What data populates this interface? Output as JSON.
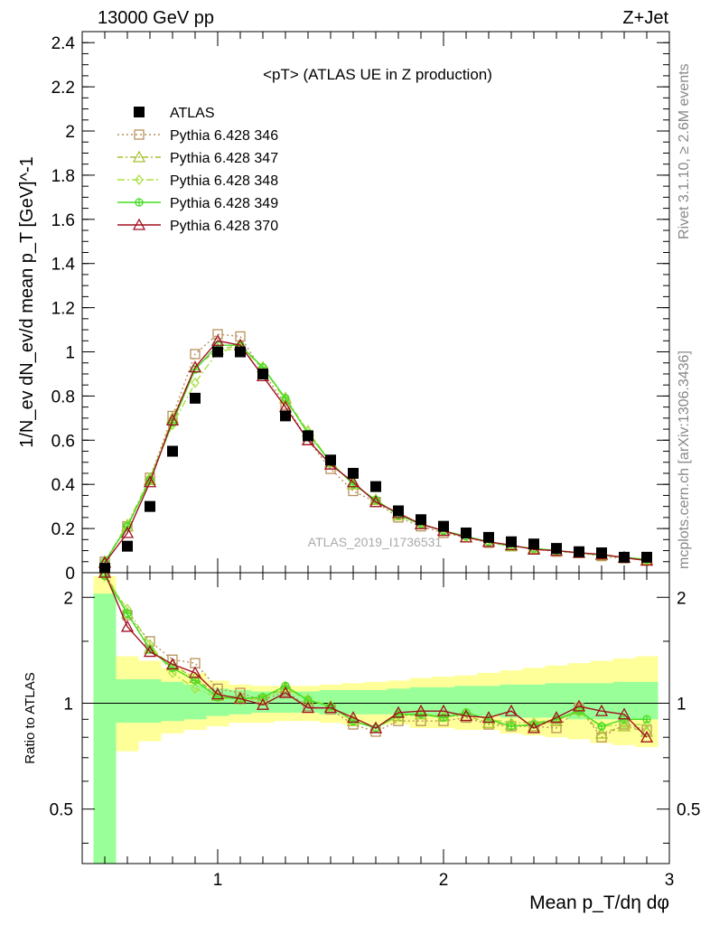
{
  "header": {
    "energy": "13000 GeV pp",
    "process": "Z+Jet"
  },
  "side_text": {
    "rivet": "Rivet 3.1.10, ≥ 2.6M events",
    "source": "mcplots.cern.ch [arXiv:1306.3436]"
  },
  "chart_data": [
    {
      "type": "line",
      "panel": "main",
      "title": "<pT> (ATLAS UE in Z production)",
      "ylabel": "1/N_ev dN_ev/d mean p_T [GeV]^-1",
      "xlim": [
        0.4,
        3.0
      ],
      "ylim": [
        0,
        2.45
      ],
      "yticks": [
        0,
        0.2,
        0.4,
        0.6,
        0.8,
        1,
        1.2,
        1.4,
        1.6,
        1.8,
        2,
        2.2,
        2.4
      ],
      "watermark": "ATLAS_2019_I1736531",
      "legend_position": "top-left",
      "x": [
        0.5,
        0.6,
        0.7,
        0.8,
        0.9,
        1.0,
        1.1,
        1.2,
        1.3,
        1.4,
        1.5,
        1.6,
        1.7,
        1.8,
        1.9,
        2.0,
        2.1,
        2.2,
        2.3,
        2.4,
        2.5,
        2.6,
        2.7,
        2.8,
        2.9
      ],
      "series": [
        {
          "name": "ATLAS",
          "color": "#000000",
          "marker": "square-filled",
          "values": [
            0.02,
            0.12,
            0.3,
            0.55,
            0.79,
            1.0,
            1.0,
            0.9,
            0.71,
            0.62,
            0.51,
            0.45,
            0.39,
            0.28,
            0.24,
            0.21,
            0.18,
            0.16,
            0.14,
            0.13,
            0.11,
            0.095,
            0.09,
            0.07,
            0.07
          ]
        },
        {
          "name": "Pythia 6.428 346",
          "color": "#b8915a",
          "marker": "square-open",
          "dash": "2,3",
          "values": [
            0.05,
            0.21,
            0.43,
            0.71,
            0.99,
            1.08,
            1.07,
            0.91,
            0.76,
            0.6,
            0.47,
            0.37,
            0.32,
            0.25,
            0.21,
            0.18,
            0.16,
            0.135,
            0.12,
            0.11,
            0.095,
            0.09,
            0.075,
            0.065,
            0.06
          ]
        },
        {
          "name": "Pythia 6.428 347",
          "color": "#a8c030",
          "marker": "triangle-open",
          "dash": "6,3,2,3",
          "values": [
            0.05,
            0.21,
            0.42,
            0.7,
            0.93,
            1.01,
            1.03,
            0.93,
            0.79,
            0.64,
            0.5,
            0.4,
            0.33,
            0.26,
            0.22,
            0.19,
            0.16,
            0.14,
            0.12,
            0.11,
            0.1,
            0.09,
            0.08,
            0.07,
            0.06
          ]
        },
        {
          "name": "Pythia 6.428 348",
          "color": "#a8e040",
          "marker": "diamond-open",
          "dash": "8,3,2,3",
          "values": [
            0.05,
            0.22,
            0.43,
            0.67,
            0.86,
            1.0,
            1.02,
            0.93,
            0.78,
            0.64,
            0.5,
            0.4,
            0.33,
            0.26,
            0.22,
            0.19,
            0.16,
            0.14,
            0.12,
            0.11,
            0.1,
            0.09,
            0.08,
            0.07,
            0.06
          ]
        },
        {
          "name": "Pythia 6.428 349",
          "color": "#44dd22",
          "marker": "circle-cross",
          "dash": "",
          "values": [
            0.05,
            0.21,
            0.42,
            0.68,
            0.92,
            1.03,
            1.03,
            0.93,
            0.79,
            0.63,
            0.5,
            0.4,
            0.33,
            0.26,
            0.22,
            0.19,
            0.165,
            0.14,
            0.12,
            0.11,
            0.1,
            0.09,
            0.08,
            0.07,
            0.06
          ]
        },
        {
          "name": "Pythia 6.428 370",
          "color": "#a01020",
          "marker": "triangle-open",
          "dash": "",
          "values": [
            0.045,
            0.18,
            0.41,
            0.69,
            0.93,
            1.05,
            1.03,
            0.89,
            0.75,
            0.6,
            0.49,
            0.41,
            0.32,
            0.27,
            0.22,
            0.19,
            0.16,
            0.14,
            0.125,
            0.105,
            0.1,
            0.09,
            0.083,
            0.068,
            0.055
          ]
        }
      ]
    },
    {
      "type": "line",
      "panel": "ratio",
      "ylabel": "Ratio to ATLAS",
      "xlabel": "Mean p_T/dη dφ",
      "xlim": [
        0.4,
        3.0
      ],
      "ylim": [
        0.35,
        2.35
      ],
      "yscale": "log",
      "yticks": [
        0.5,
        1,
        2
      ],
      "xticks": [
        1,
        2,
        3
      ],
      "bands": {
        "x_edges": [
          0.45,
          0.55,
          0.65,
          0.75,
          0.85,
          0.95,
          1.05,
          1.15,
          1.25,
          1.35,
          1.45,
          1.55,
          1.65,
          1.75,
          1.85,
          1.95,
          2.05,
          2.15,
          2.25,
          2.35,
          2.45,
          2.55,
          2.65,
          2.75,
          2.85,
          2.95
        ],
        "green_lo": [
          0.3,
          0.88,
          0.88,
          0.89,
          0.9,
          0.92,
          0.93,
          0.94,
          0.94,
          0.94,
          0.93,
          0.93,
          0.93,
          0.93,
          0.92,
          0.92,
          0.92,
          0.92,
          0.91,
          0.91,
          0.91,
          0.9,
          0.9,
          0.9,
          0.9
        ],
        "green_hi": [
          2.05,
          1.17,
          1.17,
          1.15,
          1.13,
          1.1,
          1.09,
          1.08,
          1.08,
          1.08,
          1.09,
          1.09,
          1.09,
          1.1,
          1.11,
          1.11,
          1.12,
          1.12,
          1.13,
          1.13,
          1.14,
          1.14,
          1.14,
          1.15,
          1.15
        ],
        "yellow_lo": [
          0.3,
          0.73,
          0.78,
          0.82,
          0.84,
          0.86,
          0.88,
          0.88,
          0.89,
          0.89,
          0.88,
          0.87,
          0.87,
          0.87,
          0.85,
          0.85,
          0.84,
          0.84,
          0.82,
          0.81,
          0.8,
          0.79,
          0.77,
          0.76,
          0.75
        ],
        "yellow_hi": [
          2.3,
          1.36,
          1.32,
          1.26,
          1.22,
          1.16,
          1.13,
          1.12,
          1.12,
          1.12,
          1.13,
          1.14,
          1.15,
          1.16,
          1.18,
          1.19,
          1.2,
          1.22,
          1.24,
          1.26,
          1.28,
          1.3,
          1.32,
          1.34,
          1.36
        ]
      },
      "x": [
        0.5,
        0.6,
        0.7,
        0.8,
        0.9,
        1.0,
        1.1,
        1.2,
        1.3,
        1.4,
        1.5,
        1.6,
        1.7,
        1.8,
        1.9,
        2.0,
        2.1,
        2.2,
        2.3,
        2.4,
        2.5,
        2.6,
        2.7,
        2.8,
        2.9
      ],
      "series": [
        {
          "name": "Pythia 6.428 346",
          "color": "#b8915a",
          "marker": "square-open",
          "dash": "2,3",
          "values": [
            2.35,
            1.78,
            1.5,
            1.33,
            1.3,
            1.1,
            1.07,
            1.02,
            1.08,
            0.98,
            0.96,
            0.87,
            0.83,
            0.89,
            0.89,
            0.89,
            0.91,
            0.87,
            0.86,
            0.86,
            0.85,
            0.97,
            0.8,
            0.87,
            0.84
          ]
        },
        {
          "name": "Pythia 6.428 347",
          "color": "#a8c030",
          "marker": "triangle-open",
          "dash": "6,3,2,3",
          "values": [
            2.35,
            1.8,
            1.43,
            1.28,
            1.18,
            1.05,
            1.04,
            1.03,
            1.11,
            1.02,
            0.98,
            0.89,
            0.85,
            0.92,
            0.93,
            0.92,
            0.92,
            0.88,
            0.87,
            0.86,
            0.89,
            0.96,
            0.82,
            0.86,
            0.83
          ]
        },
        {
          "name": "Pythia 6.428 348",
          "color": "#a8e040",
          "marker": "diamond-open",
          "dash": "8,3,2,3",
          "values": [
            2.3,
            1.85,
            1.47,
            1.22,
            1.1,
            1.04,
            1.02,
            1.03,
            1.1,
            1.03,
            0.98,
            0.89,
            0.85,
            0.92,
            0.93,
            0.92,
            0.94,
            0.9,
            0.88,
            0.88,
            0.9,
            0.94,
            0.86,
            0.87,
            0.87
          ]
        },
        {
          "name": "Pythia 6.428 349",
          "color": "#44dd22",
          "marker": "circle-cross",
          "dash": "",
          "values": [
            2.3,
            1.8,
            1.42,
            1.26,
            1.16,
            1.04,
            1.03,
            1.04,
            1.12,
            1.02,
            0.98,
            0.89,
            0.85,
            0.93,
            0.93,
            0.91,
            0.94,
            0.9,
            0.86,
            0.87,
            0.9,
            0.95,
            0.86,
            0.9,
            0.9
          ]
        },
        {
          "name": "Pythia 6.428 370",
          "color": "#a01020",
          "marker": "triangle-open",
          "dash": "",
          "values": [
            2.35,
            1.65,
            1.4,
            1.29,
            1.22,
            1.06,
            1.03,
            0.99,
            1.07,
            0.97,
            0.97,
            0.91,
            0.85,
            0.94,
            0.95,
            0.95,
            0.92,
            0.91,
            0.95,
            0.85,
            0.91,
            0.98,
            0.95,
            0.93,
            0.8
          ]
        }
      ]
    }
  ]
}
